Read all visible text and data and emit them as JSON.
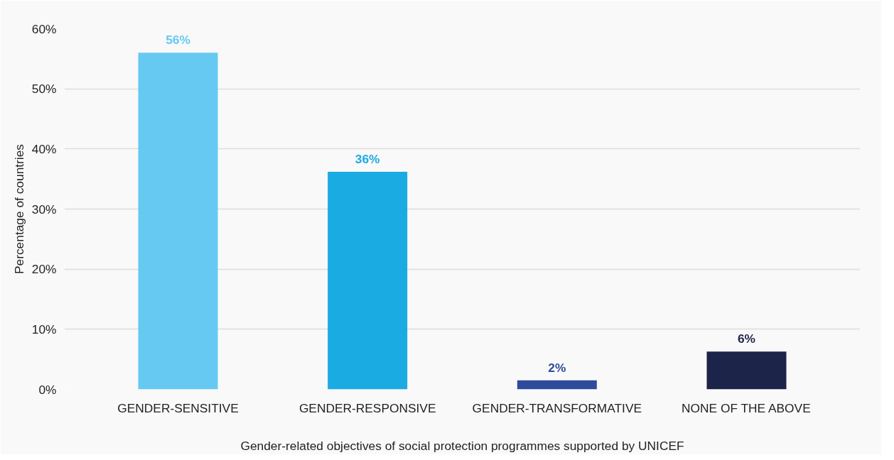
{
  "chart_data": {
    "type": "bar",
    "categories": [
      "GENDER-SENSITIVE",
      "GENDER-RESPONSIVE",
      "GENDER-TRANSFORMATIVE",
      "NONE OF THE ABOVE"
    ],
    "values": [
      56,
      36.2,
      1.5,
      6.3
    ],
    "colors": [
      "#66c9f2",
      "#1aabe2",
      "#2f4b9c",
      "#1c2449"
    ],
    "value_labels": [
      "56%",
      "36%",
      "2%",
      "6%"
    ],
    "xlabel": "Gender-related objectives of social protection programmes supported by UNICEF",
    "ylabel": "Percentage of countries",
    "ylim": [
      0,
      60
    ],
    "yticks": [
      {
        "value": 0,
        "label": "0%"
      },
      {
        "value": 10,
        "label": "10%"
      },
      {
        "value": 20,
        "label": "20%"
      },
      {
        "value": 30,
        "label": "30%"
      },
      {
        "value": 40,
        "label": "40%"
      },
      {
        "value": 50,
        "label": "50%"
      },
      {
        "value": 60,
        "label": "60%"
      }
    ],
    "grid": "y"
  }
}
